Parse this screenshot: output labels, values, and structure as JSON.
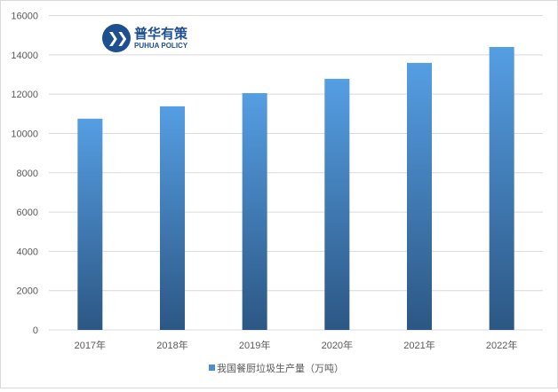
{
  "chart_data": {
    "type": "bar",
    "categories": [
      "2017年",
      "2018年",
      "2019年",
      "2020年",
      "2021年",
      "2022年"
    ],
    "series": [
      {
        "name": "我国餐厨垃圾生产量（万吨）",
        "values": [
          10750,
          11380,
          12050,
          12780,
          13590,
          14400
        ]
      }
    ],
    "ylim": [
      0,
      16000
    ],
    "yticks": [
      0,
      2000,
      4000,
      6000,
      8000,
      10000,
      12000,
      14000,
      16000
    ],
    "grid": true,
    "legend": "bottom",
    "colors": {
      "bar_top": "#559ee3",
      "bar_bottom": "#2c5784",
      "grid": "#d9d9d9"
    }
  },
  "watermark": {
    "cn": "普华有策",
    "en": "PUHUA POLICY"
  }
}
